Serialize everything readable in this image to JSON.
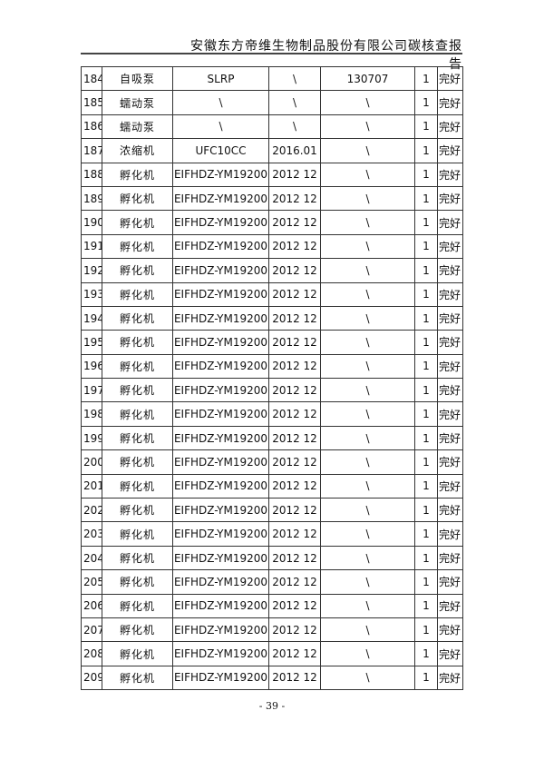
{
  "header": {
    "title": "安徽东方帝维生物制品股份有限公司碳核查报告"
  },
  "table": {
    "rows": [
      [
        "184",
        "自吸泵",
        "SLRP",
        "\\",
        "130707",
        "1",
        "完好"
      ],
      [
        "185",
        "蠕动泵",
        "\\",
        "\\",
        "\\",
        "1",
        "完好"
      ],
      [
        "186",
        "蠕动泵",
        "\\",
        "\\",
        "\\",
        "1",
        "完好"
      ],
      [
        "187",
        "浓缩机",
        "UFC10CC",
        "2016.01",
        "\\",
        "1",
        "完好"
      ],
      [
        "188",
        "孵化机",
        "EIFHDZ-YM19200",
        "2012 12",
        "\\",
        "1",
        "完好"
      ],
      [
        "189",
        "孵化机",
        "EIFHDZ-YM19200",
        "2012 12",
        "\\",
        "1",
        "完好"
      ],
      [
        "190",
        "孵化机",
        "EIFHDZ-YM19200",
        "2012 12",
        "\\",
        "1",
        "完好"
      ],
      [
        "191",
        "孵化机",
        "EIFHDZ-YM19200",
        "2012 12",
        "\\",
        "1",
        "完好"
      ],
      [
        "192",
        "孵化机",
        "EIFHDZ-YM19200",
        "2012 12",
        "\\",
        "1",
        "完好"
      ],
      [
        "193",
        "孵化机",
        "EIFHDZ-YM19200",
        "2012 12",
        "\\",
        "1",
        "完好"
      ],
      [
        "194",
        "孵化机",
        "EIFHDZ-YM19200",
        "2012 12",
        "\\",
        "1",
        "完好"
      ],
      [
        "195",
        "孵化机",
        "EIFHDZ-YM19200",
        "2012 12",
        "\\",
        "1",
        "完好"
      ],
      [
        "196",
        "孵化机",
        "EIFHDZ-YM19200",
        "2012 12",
        "\\",
        "1",
        "完好"
      ],
      [
        "197",
        "孵化机",
        "EIFHDZ-YM19200",
        "2012 12",
        "\\",
        "1",
        "完好"
      ],
      [
        "198",
        "孵化机",
        "EIFHDZ-YM19200",
        "2012 12",
        "\\",
        "1",
        "完好"
      ],
      [
        "199",
        "孵化机",
        "EIFHDZ-YM19200",
        "2012 12",
        "\\",
        "1",
        "完好"
      ],
      [
        "200",
        "孵化机",
        "EIFHDZ-YM19200",
        "2012 12",
        "\\",
        "1",
        "完好"
      ],
      [
        "201",
        "孵化机",
        "EIFHDZ-YM19200",
        "2012 12",
        "\\",
        "1",
        "完好"
      ],
      [
        "202",
        "孵化机",
        "EIFHDZ-YM19200",
        "2012 12",
        "\\",
        "1",
        "完好"
      ],
      [
        "203",
        "孵化机",
        "EIFHDZ-YM19200",
        "2012 12",
        "\\",
        "1",
        "完好"
      ],
      [
        "204",
        "孵化机",
        "EIFHDZ-YM19200",
        "2012 12",
        "\\",
        "1",
        "完好"
      ],
      [
        "205",
        "孵化机",
        "EIFHDZ-YM19200",
        "2012 12",
        "\\",
        "1",
        "完好"
      ],
      [
        "206",
        "孵化机",
        "EIFHDZ-YM19200",
        "2012 12",
        "\\",
        "1",
        "完好"
      ],
      [
        "207",
        "孵化机",
        "EIFHDZ-YM19200",
        "2012 12",
        "\\",
        "1",
        "完好"
      ],
      [
        "208",
        "孵化机",
        "EIFHDZ-YM19200",
        "2012 12",
        "\\",
        "1",
        "完好"
      ],
      [
        "209",
        "孵化机",
        "EIFHDZ-YM19200",
        "2012 12",
        "\\",
        "1",
        "完好"
      ]
    ]
  },
  "footer": {
    "page_number": "- 39 -"
  }
}
